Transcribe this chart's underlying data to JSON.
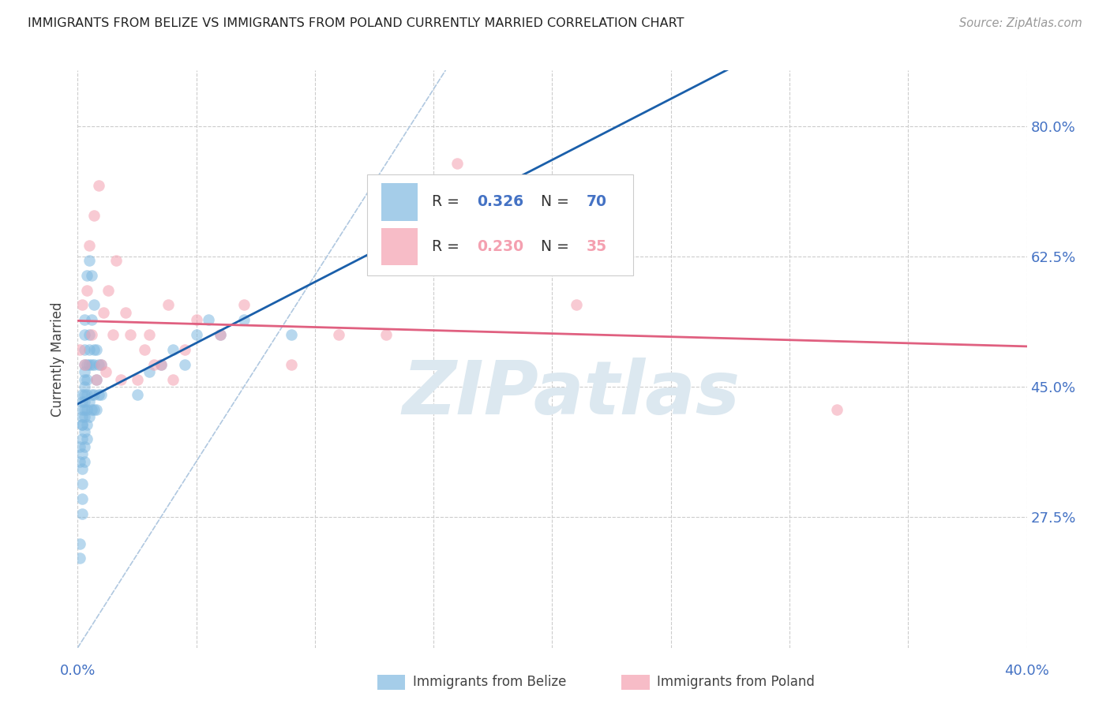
{
  "title": "IMMIGRANTS FROM BELIZE VS IMMIGRANTS FROM POLAND CURRENTLY MARRIED CORRELATION CHART",
  "source": "Source: ZipAtlas.com",
  "ylabel": "Currently Married",
  "xlim": [
    0.0,
    0.4
  ],
  "ylim": [
    0.1,
    0.875
  ],
  "yticks": [
    0.275,
    0.45,
    0.625,
    0.8
  ],
  "ytick_labels": [
    "27.5%",
    "45.0%",
    "62.5%",
    "80.0%"
  ],
  "xticks": [
    0.0,
    0.05,
    0.1,
    0.15,
    0.2,
    0.25,
    0.3,
    0.35,
    0.4
  ],
  "belize_color": "#7fb8e0",
  "poland_color": "#f4a0b0",
  "belize_line_color": "#1a5faa",
  "poland_line_color": "#e06080",
  "diag_color": "#b0c8e0",
  "belize_R": 0.326,
  "belize_N": 70,
  "poland_R": 0.23,
  "poland_N": 35,
  "tick_color": "#4472c4",
  "grid_color": "#cccccc",
  "watermark": "ZIPatlas",
  "watermark_color": "#dce8f0",
  "belize_x": [
    0.001,
    0.001,
    0.001,
    0.001,
    0.002,
    0.002,
    0.002,
    0.002,
    0.002,
    0.002,
    0.002,
    0.002,
    0.002,
    0.002,
    0.002,
    0.002,
    0.003,
    0.003,
    0.003,
    0.003,
    0.003,
    0.003,
    0.003,
    0.003,
    0.003,
    0.003,
    0.003,
    0.003,
    0.003,
    0.003,
    0.004,
    0.004,
    0.004,
    0.004,
    0.004,
    0.004,
    0.004,
    0.005,
    0.005,
    0.005,
    0.005,
    0.005,
    0.005,
    0.006,
    0.006,
    0.006,
    0.006,
    0.006,
    0.007,
    0.007,
    0.007,
    0.007,
    0.007,
    0.008,
    0.008,
    0.008,
    0.009,
    0.009,
    0.01,
    0.01,
    0.025,
    0.03,
    0.035,
    0.04,
    0.045,
    0.05,
    0.055,
    0.06,
    0.07,
    0.09
  ],
  "belize_y": [
    0.22,
    0.24,
    0.35,
    0.37,
    0.28,
    0.3,
    0.32,
    0.34,
    0.36,
    0.38,
    0.4,
    0.4,
    0.41,
    0.42,
    0.43,
    0.44,
    0.35,
    0.37,
    0.39,
    0.41,
    0.42,
    0.43,
    0.44,
    0.45,
    0.46,
    0.47,
    0.48,
    0.5,
    0.52,
    0.54,
    0.38,
    0.4,
    0.42,
    0.44,
    0.46,
    0.48,
    0.6,
    0.41,
    0.43,
    0.48,
    0.5,
    0.52,
    0.62,
    0.42,
    0.44,
    0.48,
    0.54,
    0.6,
    0.42,
    0.44,
    0.48,
    0.5,
    0.56,
    0.42,
    0.46,
    0.5,
    0.44,
    0.48,
    0.44,
    0.48,
    0.44,
    0.47,
    0.48,
    0.5,
    0.48,
    0.52,
    0.54,
    0.52,
    0.54,
    0.52
  ],
  "poland_x": [
    0.001,
    0.002,
    0.003,
    0.004,
    0.005,
    0.006,
    0.007,
    0.008,
    0.009,
    0.01,
    0.011,
    0.012,
    0.013,
    0.015,
    0.016,
    0.018,
    0.02,
    0.022,
    0.025,
    0.028,
    0.03,
    0.032,
    0.035,
    0.038,
    0.04,
    0.045,
    0.05,
    0.06,
    0.07,
    0.09,
    0.11,
    0.13,
    0.16,
    0.21,
    0.32
  ],
  "poland_y": [
    0.5,
    0.56,
    0.48,
    0.58,
    0.64,
    0.52,
    0.68,
    0.46,
    0.72,
    0.48,
    0.55,
    0.47,
    0.58,
    0.52,
    0.62,
    0.46,
    0.55,
    0.52,
    0.46,
    0.5,
    0.52,
    0.48,
    0.48,
    0.56,
    0.46,
    0.5,
    0.54,
    0.52,
    0.56,
    0.48,
    0.52,
    0.52,
    0.75,
    0.56,
    0.42
  ]
}
